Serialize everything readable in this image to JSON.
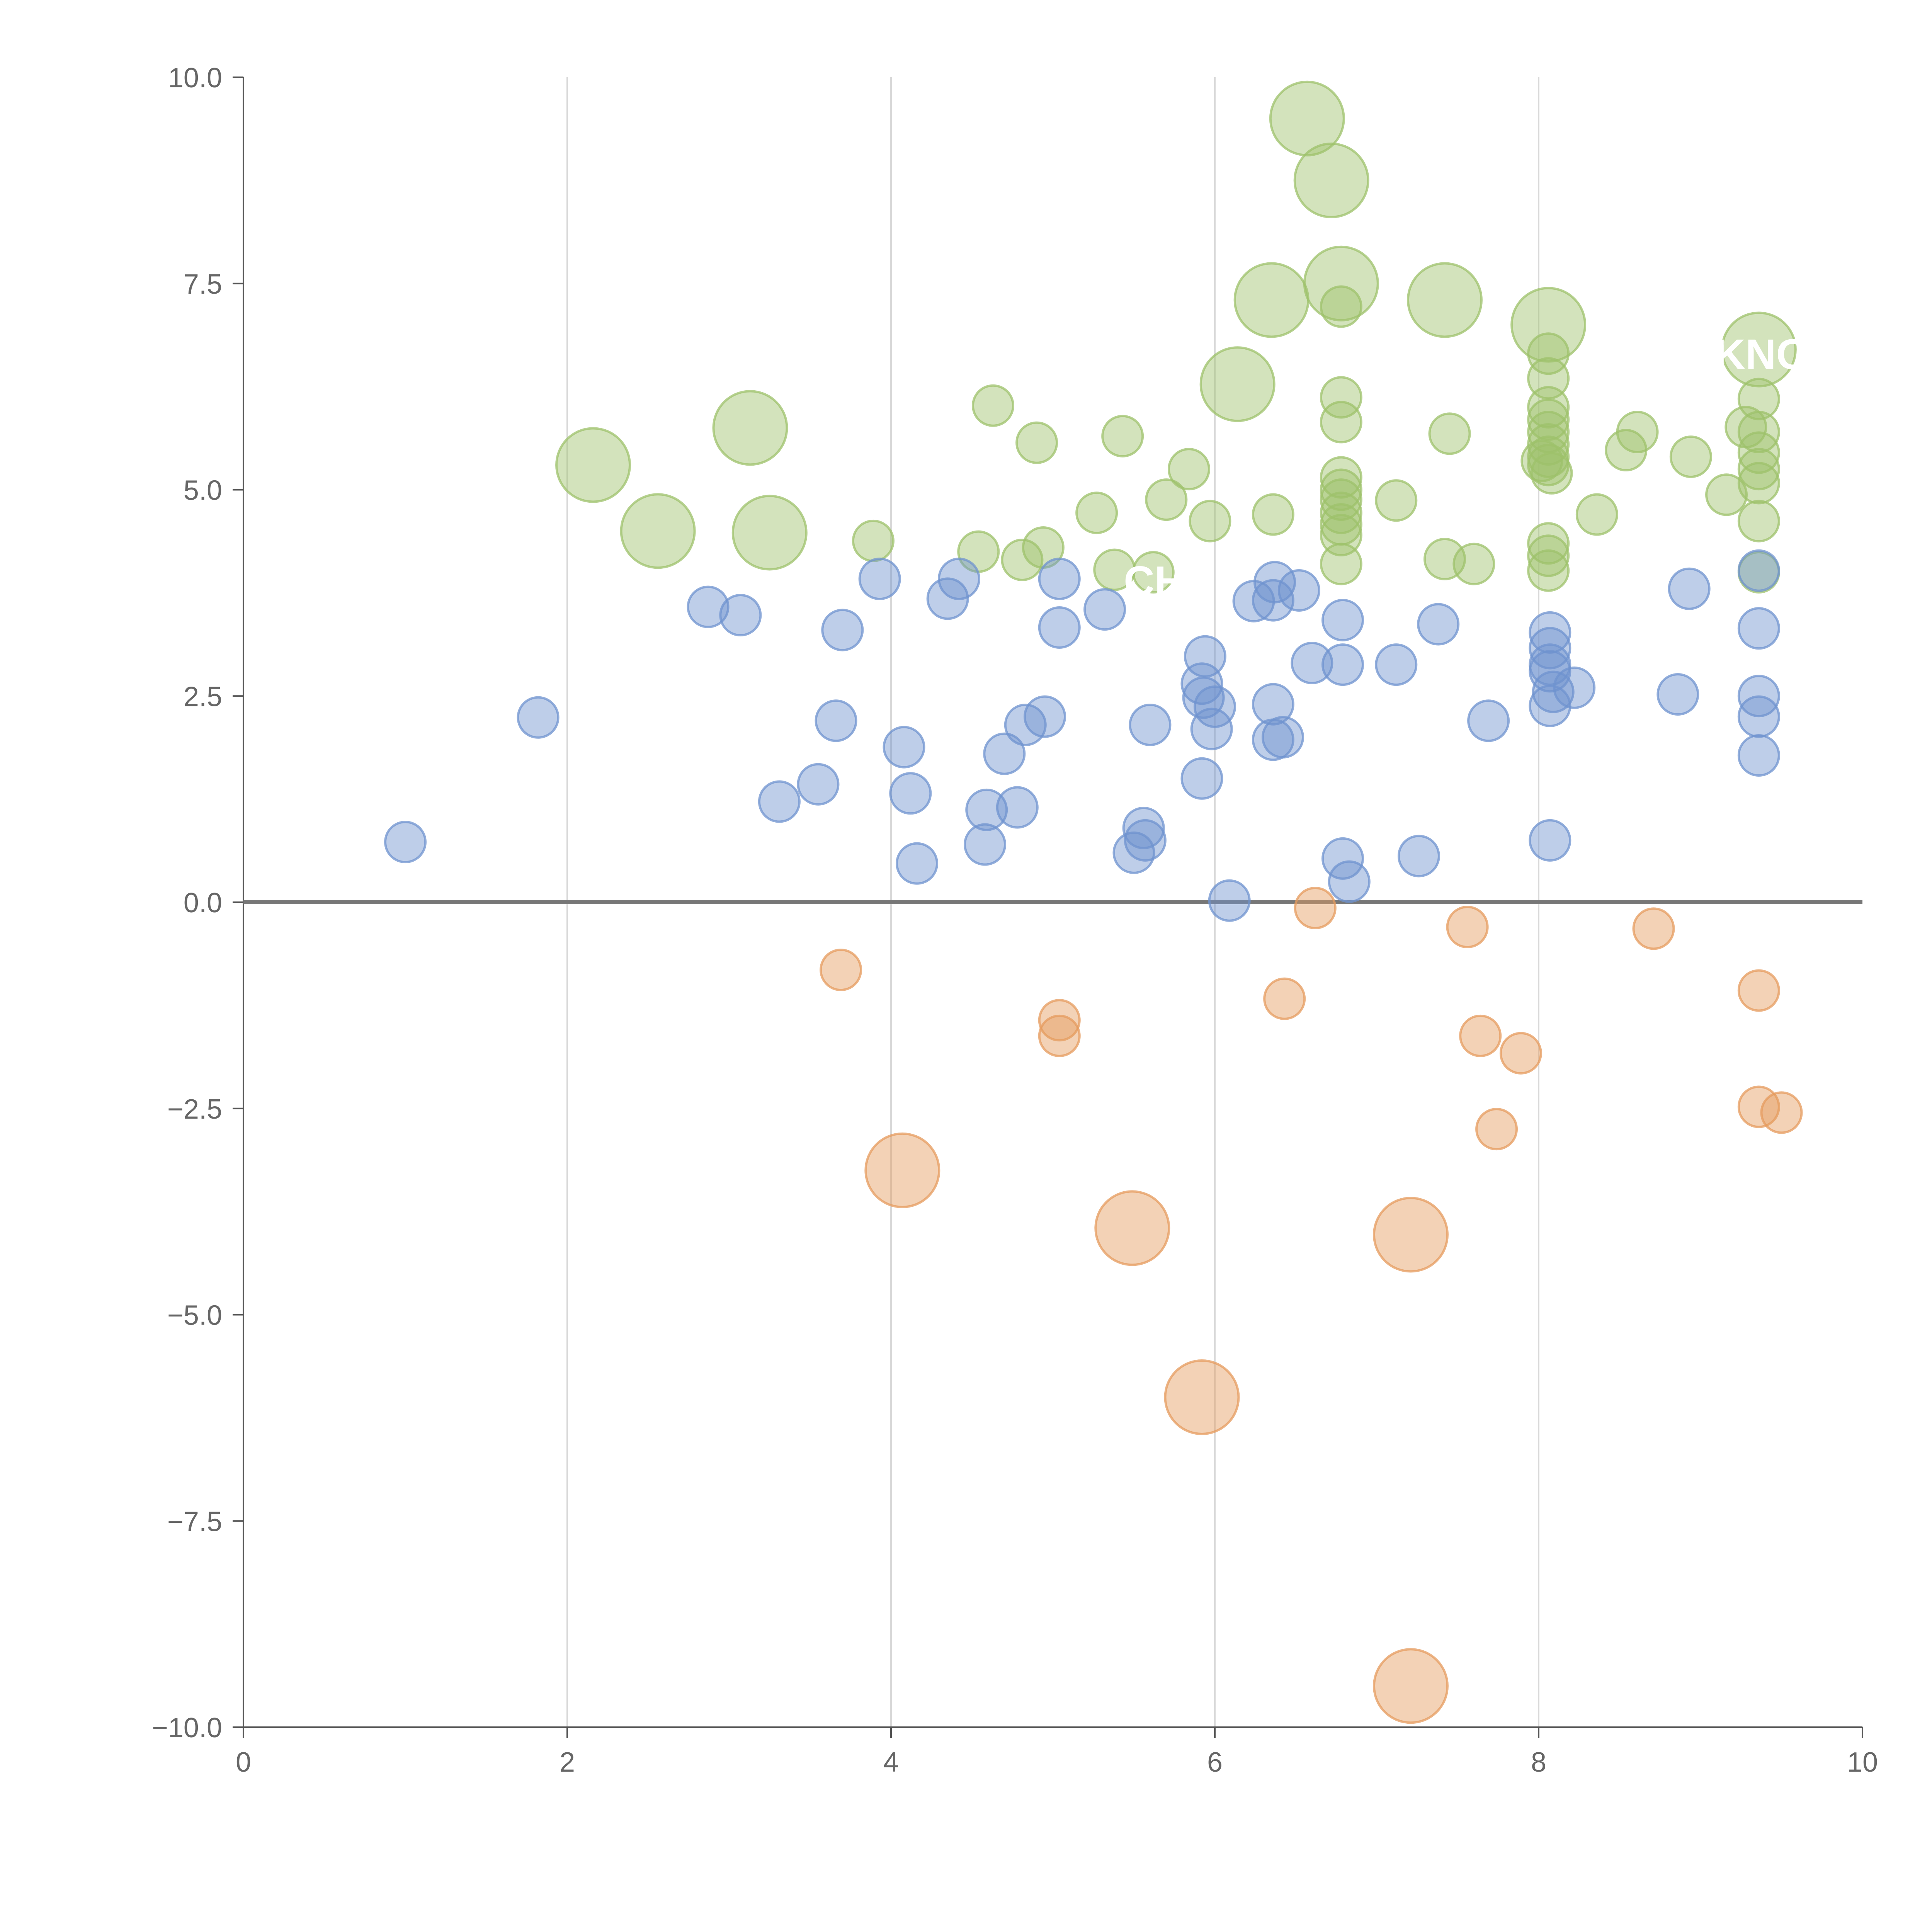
{
  "chart_data": {
    "type": "scatter",
    "title": "",
    "xlabel": "",
    "ylabel": "",
    "xlim": [
      0,
      10
    ],
    "ylim": [
      -10,
      10
    ],
    "x_ticks": [
      0,
      2,
      4,
      6,
      8,
      10
    ],
    "y_ticks": [
      10.0,
      7.5,
      5.0,
      2.5,
      0.0,
      -2.5,
      -5.0,
      -7.5,
      -10.0
    ],
    "x_tick_labels": [
      "0",
      "2",
      "4",
      "6",
      "8",
      "10"
    ],
    "y_tick_labels": [
      "10.0",
      "7.5",
      "5.0",
      "2.5",
      "0.0",
      "−2.5",
      "−5.0",
      "−7.5",
      "−10.0"
    ],
    "grid": "vertical",
    "reference_line_y": 0,
    "colors": {
      "green": "#9dc16b",
      "blue": "#6f93cf",
      "orange": "#e59b5d"
    },
    "visible_labels": [
      {
        "text": "KNO",
        "x": 9.35,
        "y": 6.65
      },
      {
        "text": "CH",
        "x": 5.7,
        "y": 3.9
      }
    ],
    "series": [
      {
        "name": "positive-high",
        "color": "green",
        "points": [
          [
            6.57,
            9.5,
            3
          ],
          [
            6.72,
            8.75,
            3
          ],
          [
            6.78,
            7.5,
            3
          ],
          [
            6.35,
            7.3,
            3
          ],
          [
            7.42,
            7.3,
            3
          ],
          [
            8.06,
            7.0,
            3
          ],
          [
            9.36,
            6.7,
            3
          ],
          [
            6.14,
            6.28,
            3
          ],
          [
            3.13,
            5.75,
            3
          ],
          [
            2.16,
            5.3,
            3
          ],
          [
            2.56,
            4.5,
            3
          ],
          [
            3.25,
            4.48,
            3
          ],
          [
            6.78,
            7.22,
            1
          ],
          [
            6.78,
            6.12,
            1
          ],
          [
            6.78,
            5.82,
            1
          ],
          [
            6.78,
            5.15,
            1
          ],
          [
            6.78,
            5.0,
            1
          ],
          [
            6.78,
            4.88,
            1
          ],
          [
            6.78,
            4.72,
            1
          ],
          [
            6.78,
            4.58,
            1
          ],
          [
            6.78,
            4.45,
            1
          ],
          [
            6.78,
            4.1,
            1
          ],
          [
            4.63,
            6.02,
            1
          ],
          [
            4.9,
            5.57,
            1
          ],
          [
            5.43,
            5.65,
            1
          ],
          [
            5.84,
            5.25,
            1
          ],
          [
            5.7,
            4.88,
            1
          ],
          [
            5.27,
            4.72,
            1
          ],
          [
            5.97,
            4.62,
            1
          ],
          [
            6.36,
            4.7,
            1
          ],
          [
            3.89,
            4.38,
            1
          ],
          [
            4.54,
            4.25,
            1
          ],
          [
            4.81,
            4.15,
            1
          ],
          [
            4.94,
            4.3,
            1
          ],
          [
            5.38,
            4.03,
            1
          ],
          [
            5.62,
            4.0,
            1
          ],
          [
            7.12,
            4.87,
            1
          ],
          [
            7.45,
            5.68,
            1
          ],
          [
            7.42,
            4.16,
            1
          ],
          [
            7.6,
            4.1,
            1
          ],
          [
            8.06,
            6.65,
            1
          ],
          [
            8.06,
            6.35,
            1
          ],
          [
            8.06,
            6.0,
            1
          ],
          [
            8.06,
            5.85,
            1
          ],
          [
            8.06,
            5.7,
            1
          ],
          [
            8.06,
            5.55,
            1
          ],
          [
            8.06,
            5.4,
            1
          ],
          [
            8.06,
            5.3,
            1
          ],
          [
            8.02,
            5.35,
            1
          ],
          [
            8.08,
            5.2,
            1
          ],
          [
            8.06,
            4.35,
            1
          ],
          [
            8.06,
            4.2,
            1
          ],
          [
            8.06,
            4.02,
            1
          ],
          [
            8.36,
            4.7,
            1
          ],
          [
            8.54,
            5.48,
            1
          ],
          [
            8.61,
            5.7,
            1
          ],
          [
            8.94,
            5.4,
            1
          ],
          [
            9.16,
            4.94,
            1
          ],
          [
            9.28,
            5.76,
            1
          ],
          [
            9.36,
            6.1,
            1
          ],
          [
            9.36,
            5.7,
            1
          ],
          [
            9.36,
            5.45,
            1
          ],
          [
            9.36,
            5.25,
            1
          ],
          [
            9.36,
            5.08,
            1
          ],
          [
            9.36,
            4.62,
            1
          ],
          [
            9.36,
            4.0,
            1
          ]
        ]
      },
      {
        "name": "positive-low",
        "color": "blue",
        "points": [
          [
            1.0,
            0.73,
            1
          ],
          [
            1.82,
            2.24,
            1
          ],
          [
            2.87,
            3.58,
            1
          ],
          [
            3.07,
            3.48,
            1
          ],
          [
            3.31,
            1.22,
            1
          ],
          [
            3.55,
            1.43,
            1
          ],
          [
            3.66,
            2.2,
            1
          ],
          [
            3.7,
            3.3,
            1
          ],
          [
            3.93,
            3.92,
            1
          ],
          [
            4.08,
            1.88,
            1
          ],
          [
            4.12,
            1.32,
            1
          ],
          [
            4.16,
            0.47,
            1
          ],
          [
            4.35,
            3.68,
            1
          ],
          [
            4.42,
            3.92,
            1
          ],
          [
            4.58,
            0.7,
            1
          ],
          [
            4.59,
            1.12,
            1
          ],
          [
            4.7,
            1.8,
            1
          ],
          [
            4.78,
            1.15,
            1
          ],
          [
            4.83,
            2.15,
            1
          ],
          [
            4.95,
            2.25,
            1
          ],
          [
            5.04,
            3.92,
            1
          ],
          [
            5.04,
            3.33,
            1
          ],
          [
            5.32,
            3.55,
            1
          ],
          [
            5.5,
            0.6,
            1
          ],
          [
            5.56,
            0.9,
            1
          ],
          [
            5.57,
            0.75,
            1
          ],
          [
            5.6,
            2.15,
            1
          ],
          [
            5.92,
            1.5,
            1
          ],
          [
            5.94,
            2.98,
            1
          ],
          [
            5.92,
            2.65,
            1
          ],
          [
            5.93,
            2.48,
            1
          ],
          [
            6.0,
            2.37,
            1
          ],
          [
            5.98,
            2.1,
            1
          ],
          [
            6.09,
            0.02,
            1
          ],
          [
            6.24,
            3.65,
            1
          ],
          [
            6.37,
            3.88,
            1
          ],
          [
            6.36,
            3.66,
            1
          ],
          [
            6.52,
            3.78,
            1
          ],
          [
            6.36,
            2.4,
            1
          ],
          [
            6.36,
            1.97,
            1
          ],
          [
            6.42,
            2.0,
            1
          ],
          [
            6.6,
            2.9,
            1
          ],
          [
            6.79,
            3.42,
            1
          ],
          [
            6.79,
            2.88,
            1
          ],
          [
            6.79,
            0.53,
            1
          ],
          [
            6.83,
            0.25,
            1
          ],
          [
            7.12,
            2.88,
            1
          ],
          [
            7.26,
            0.56,
            1
          ],
          [
            7.38,
            3.37,
            1
          ],
          [
            7.69,
            2.2,
            1
          ],
          [
            8.07,
            3.27,
            1
          ],
          [
            8.07,
            3.08,
            1
          ],
          [
            8.07,
            2.88,
            1
          ],
          [
            8.07,
            2.8,
            1
          ],
          [
            8.09,
            2.55,
            1
          ],
          [
            8.07,
            2.38,
            1
          ],
          [
            8.22,
            2.6,
            1
          ],
          [
            8.07,
            0.75,
            1
          ],
          [
            8.86,
            2.52,
            1
          ],
          [
            8.93,
            3.8,
            1
          ],
          [
            9.36,
            4.02,
            1
          ],
          [
            9.36,
            3.32,
            1
          ],
          [
            9.36,
            2.5,
            1
          ],
          [
            9.36,
            2.25,
            1
          ],
          [
            9.36,
            1.78,
            1
          ]
        ]
      },
      {
        "name": "negative",
        "color": "orange",
        "points": [
          [
            3.69,
            -0.82,
            1
          ],
          [
            5.04,
            -1.43,
            1
          ],
          [
            5.04,
            -1.62,
            1
          ],
          [
            6.43,
            -1.17,
            1
          ],
          [
            6.62,
            -0.07,
            1
          ],
          [
            7.56,
            -0.3,
            1
          ],
          [
            7.64,
            -1.62,
            1
          ],
          [
            7.89,
            -1.83,
            1
          ],
          [
            7.74,
            -2.75,
            1
          ],
          [
            8.71,
            -0.32,
            1
          ],
          [
            9.36,
            -1.07,
            1
          ],
          [
            9.36,
            -2.48,
            1
          ],
          [
            9.5,
            -2.55,
            1
          ],
          [
            4.07,
            -3.25,
            3
          ],
          [
            5.49,
            -3.95,
            3
          ],
          [
            7.21,
            -4.03,
            3
          ],
          [
            5.92,
            -6.0,
            3
          ],
          [
            7.21,
            -9.5,
            3
          ]
        ]
      }
    ]
  }
}
